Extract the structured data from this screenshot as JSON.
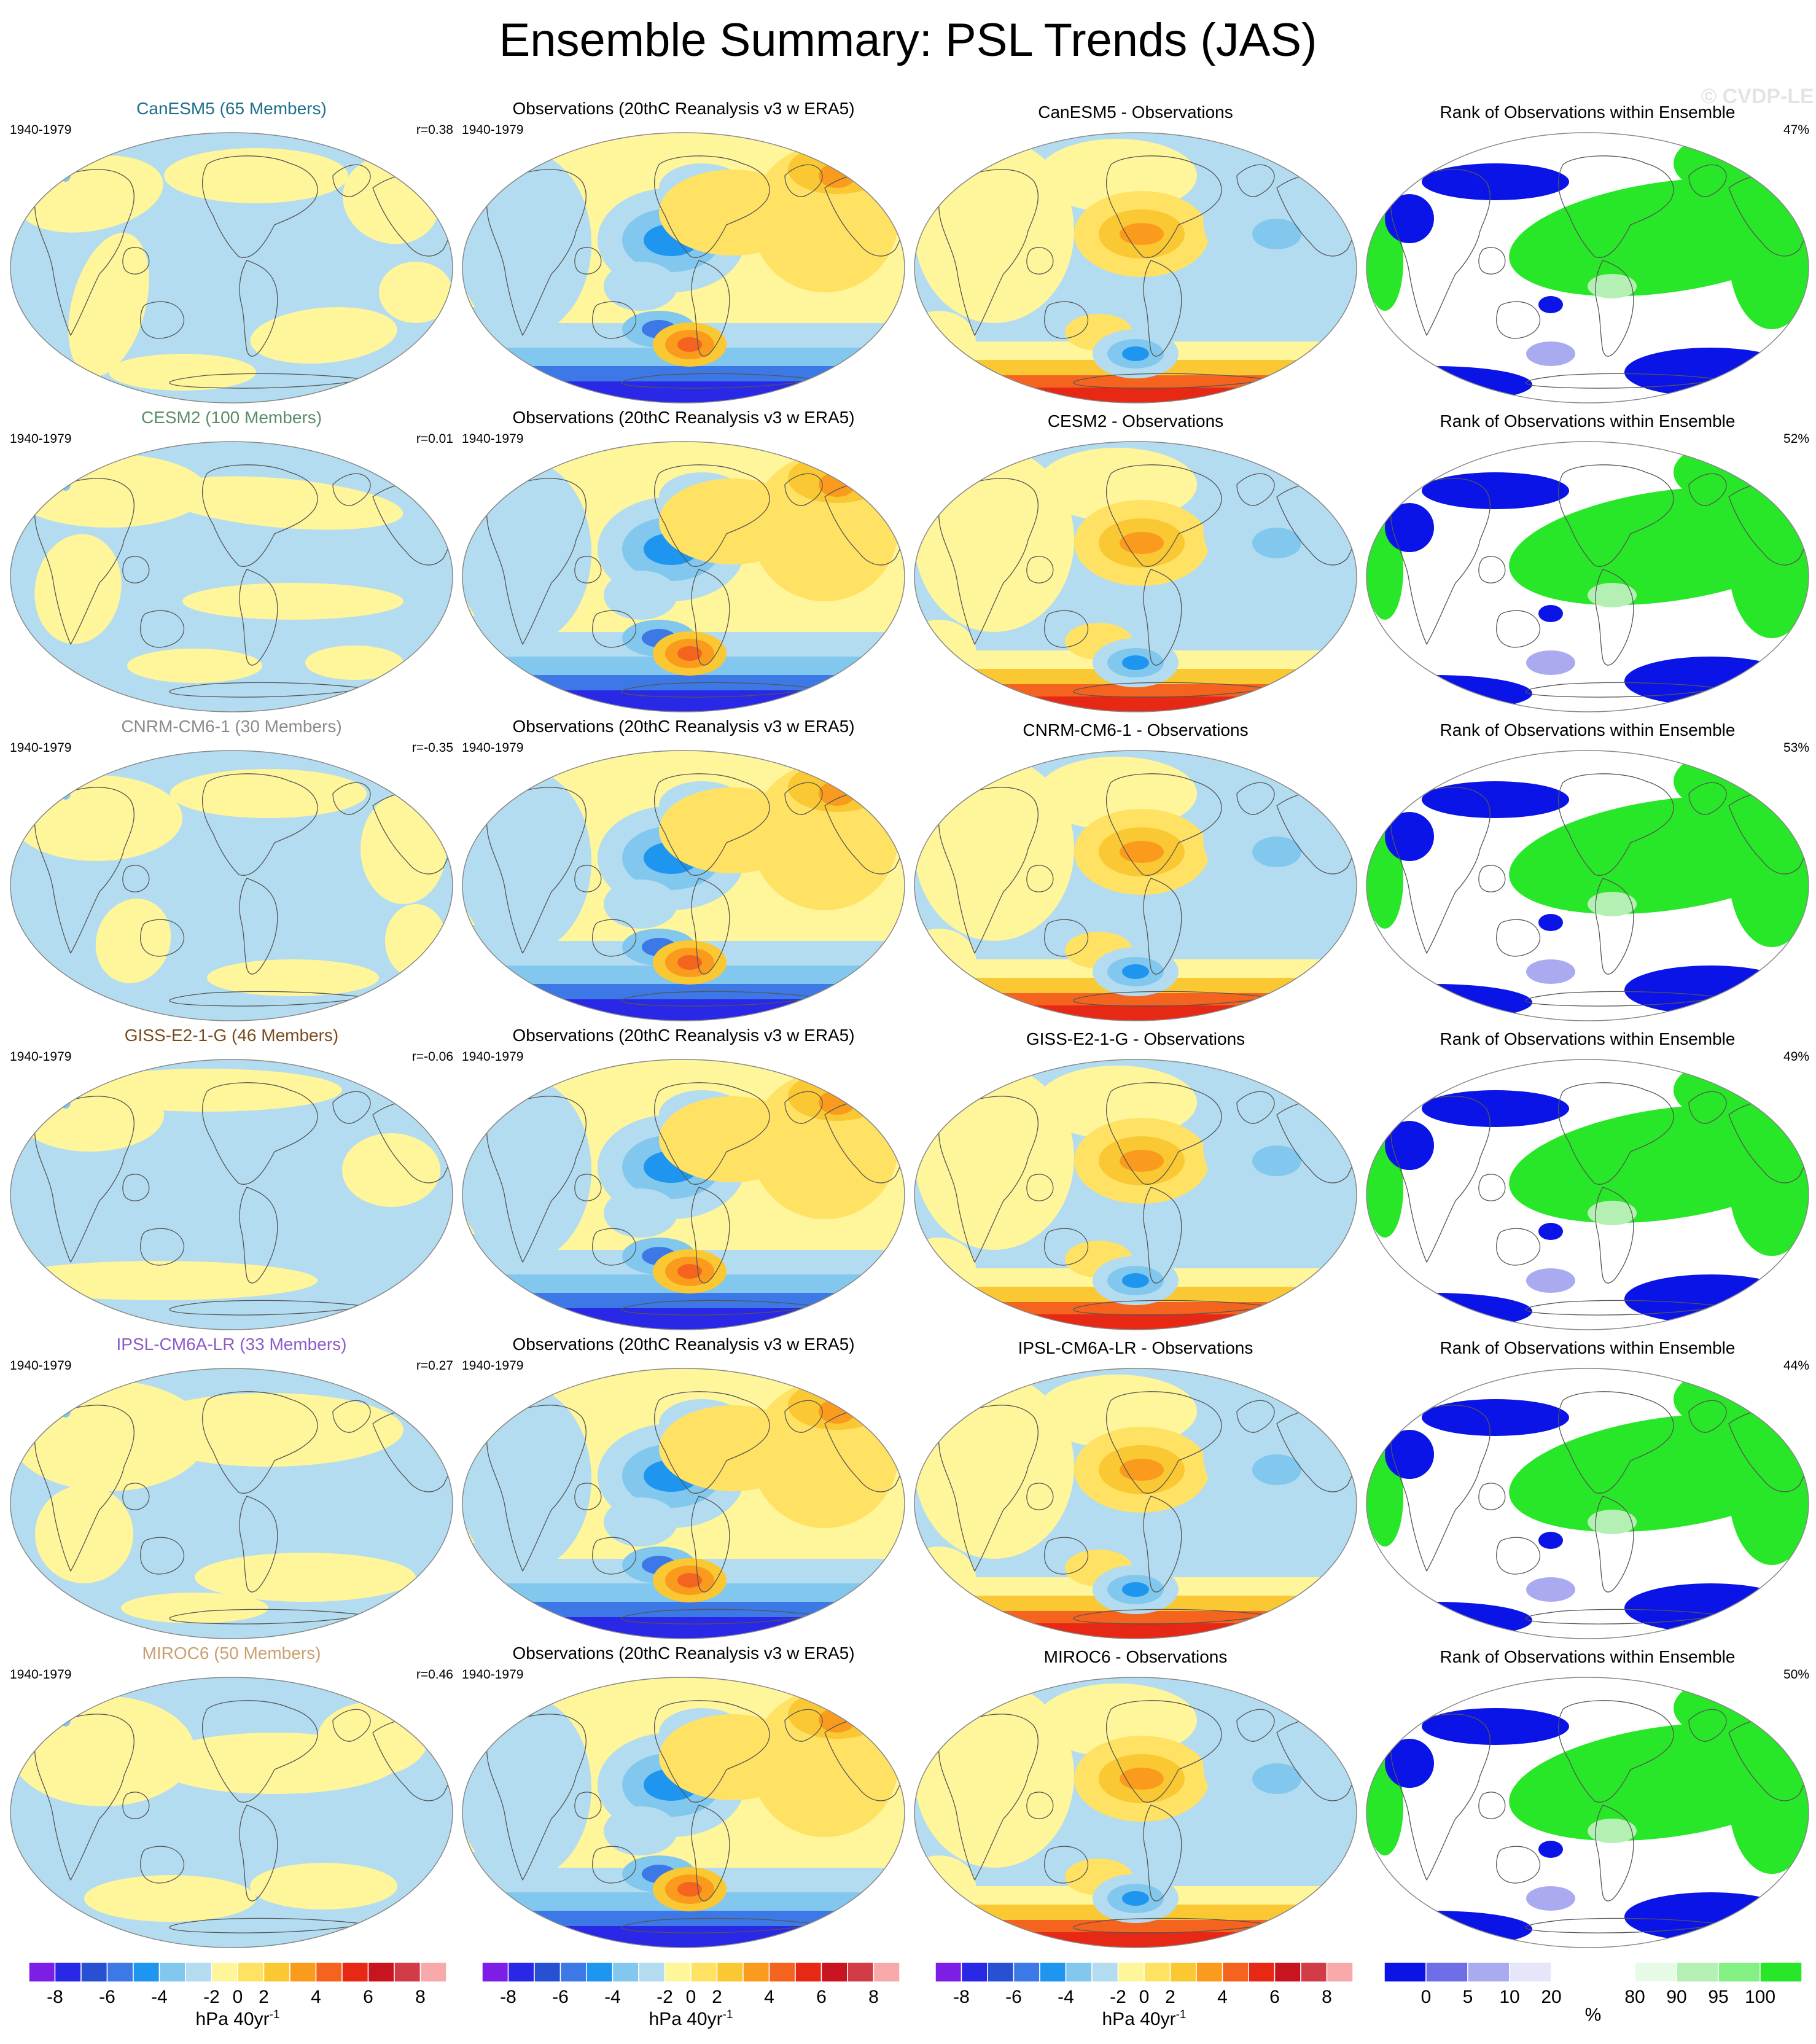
{
  "title": "Ensemble Summary: PSL Trends (JAS)",
  "watermark": "© CVDP-LE",
  "rows": [
    {
      "model": "CanESM5 (65 Members)",
      "model_color": "#1f6e8c",
      "diff_title": "CanESM5 - Observations",
      "years": "1940-1979",
      "r": "r=0.38",
      "rank_pct": "47%",
      "variant": 0
    },
    {
      "model": "CESM2 (100 Members)",
      "model_color": "#5a8c6a",
      "diff_title": "CESM2 - Observations",
      "years": "1940-1979",
      "r": "r=0.01",
      "rank_pct": "52%",
      "variant": 1
    },
    {
      "model": "CNRM-CM6-1 (30 Members)",
      "model_color": "#8a8a8a",
      "diff_title": "CNRM-CM6-1 - Observations",
      "years": "1940-1979",
      "r": "r=-0.35",
      "rank_pct": "53%",
      "variant": 2
    },
    {
      "model": "GISS-E2-1-G (46 Members)",
      "model_color": "#7a4a1e",
      "diff_title": "GISS-E2-1-G - Observations",
      "years": "1940-1979",
      "r": "r=-0.06",
      "rank_pct": "49%",
      "variant": 3
    },
    {
      "model": "IPSL-CM6A-LR (33 Members)",
      "model_color": "#8c5ac8",
      "diff_title": "IPSL-CM6A-LR - Observations",
      "years": "1940-1979",
      "r": "r=0.27",
      "rank_pct": "44%",
      "variant": 4
    },
    {
      "model": "MIROC6 (50 Members)",
      "model_color": "#c8a070",
      "diff_title": "MIROC6 - Observations",
      "years": "1940-1979",
      "r": "r=0.46",
      "rank_pct": "50%",
      "variant": 5
    }
  ],
  "obs_title": "Observations (20thC Reanalysis v3 w ERA5)",
  "rank_title": "Rank of Observations within Ensemble",
  "trend_colorbar": {
    "colors": [
      "#7d1ee6",
      "#2828e6",
      "#2850d2",
      "#3c78e6",
      "#1e96f0",
      "#82c8ee",
      "#b4dcf0",
      "#fff59a",
      "#ffe164",
      "#fac832",
      "#fa9b1e",
      "#f5641e",
      "#e62814",
      "#c8141e",
      "#d23c46",
      "#f8aaaa"
    ],
    "labels": [
      "-8",
      "-6",
      "-4",
      "-2",
      "0",
      "2",
      "4",
      "6",
      "8"
    ],
    "unit": "hPa 40yr",
    "unit_sup": "-1"
  },
  "rank_colorbar": {
    "colors": [
      "#0a14e6",
      "#6e6ee6",
      "#aaaaf0",
      "#e6e6fa",
      "#ffffff",
      "#ffffff",
      "#e6fae6",
      "#b4f0b4",
      "#82f082",
      "#28e628"
    ],
    "labels": [
      "0",
      "5",
      "10",
      "20",
      "80",
      "90",
      "95",
      "100"
    ],
    "unit": "%"
  }
}
